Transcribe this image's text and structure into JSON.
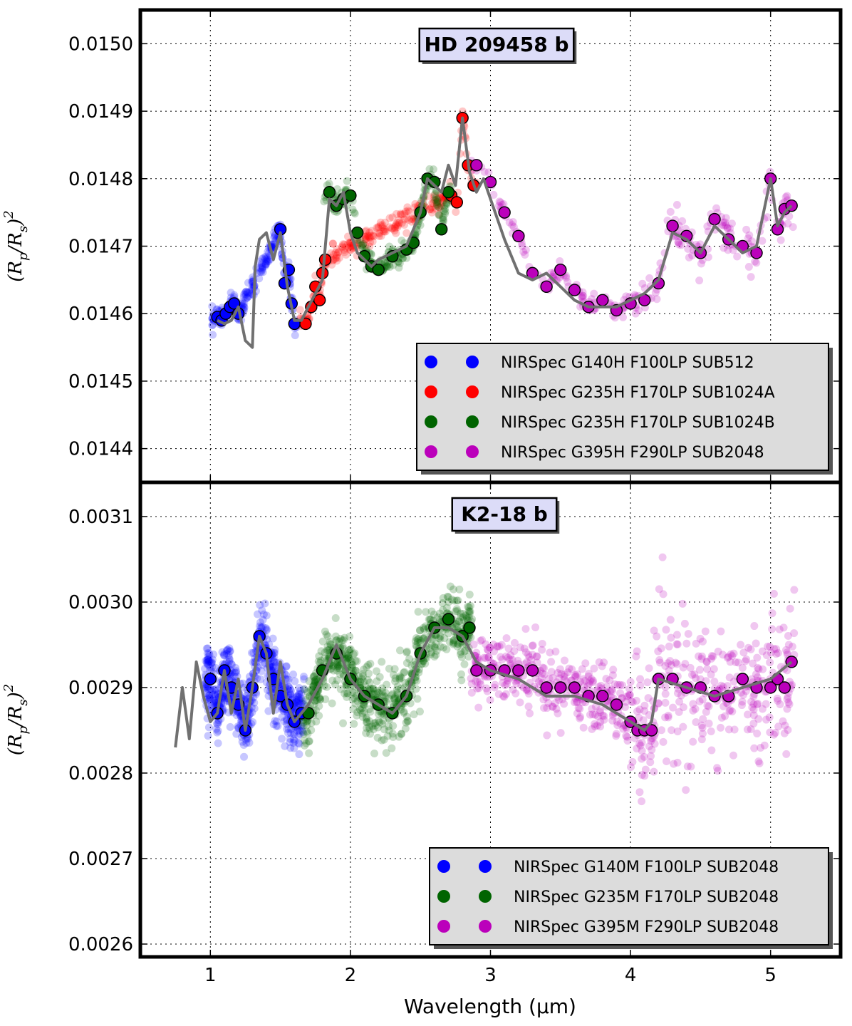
{
  "chart_data": [
    {
      "type": "scatter",
      "title": "HD 209458 b",
      "ylabel": "(R_p/R_s)^2",
      "xlabel": "",
      "xlim": [
        0.5,
        5.5
      ],
      "ylim": [
        0.01435,
        0.01505
      ],
      "yticks": [
        "0.0144",
        "0.0145",
        "0.0146",
        "0.0147",
        "0.0148",
        "0.0149",
        "0.0150"
      ],
      "yticks_values": [
        0.0144,
        0.0145,
        0.0146,
        0.0147,
        0.0148,
        0.0149,
        0.015
      ],
      "grid": true,
      "legend_position": "lower-right",
      "series": [
        {
          "name": "NIRSpec G140H F100LP SUB512",
          "color": "#0000ff",
          "x": [
            1.05,
            1.08,
            1.11,
            1.14,
            1.17,
            1.2,
            1.5,
            1.53,
            1.56,
            1.58,
            1.6
          ],
          "y": [
            0.014595,
            0.01459,
            0.0146,
            0.01461,
            0.014615,
            0.0146,
            0.014725,
            0.014645,
            0.014665,
            0.014615,
            0.014585
          ]
        },
        {
          "name": "NIRSpec G235H F170LP SUB1024A",
          "color": "#ff0000",
          "x": [
            1.68,
            1.72,
            1.75,
            1.78,
            1.8,
            1.82,
            2.72,
            2.76,
            2.8,
            2.84,
            2.88
          ],
          "y": [
            0.014585,
            0.01461,
            0.01464,
            0.01462,
            0.01466,
            0.01468,
            0.014775,
            0.014765,
            0.01489,
            0.01482,
            0.01479
          ]
        },
        {
          "name": "NIRSpec G235H F170LP SUB1024B",
          "color": "#006400",
          "x": [
            1.85,
            1.9,
            1.95,
            2.0,
            2.05,
            2.1,
            2.15,
            2.2,
            2.3,
            2.4,
            2.45,
            2.5,
            2.55,
            2.6,
            2.65,
            2.7
          ],
          "y": [
            0.01478,
            0.01476,
            0.01477,
            0.014775,
            0.01472,
            0.014685,
            0.01467,
            0.014665,
            0.014685,
            0.014695,
            0.014705,
            0.01475,
            0.0148,
            0.014795,
            0.014725,
            0.01478
          ]
        },
        {
          "name": "NIRSpec G395H F290LP SUB2048",
          "color": "#bb00bb",
          "x": [
            2.9,
            3.0,
            3.1,
            3.2,
            3.3,
            3.4,
            3.5,
            3.6,
            3.7,
            3.8,
            3.9,
            4.0,
            4.1,
            4.2,
            4.3,
            4.4,
            4.5,
            4.6,
            4.7,
            4.8,
            4.9,
            5.0,
            5.05,
            5.1,
            5.15
          ],
          "y": [
            0.01482,
            0.014795,
            0.01475,
            0.014715,
            0.01466,
            0.01464,
            0.014665,
            0.014635,
            0.01461,
            0.01462,
            0.014605,
            0.014615,
            0.01462,
            0.014645,
            0.01473,
            0.014715,
            0.01469,
            0.01474,
            0.01471,
            0.0147,
            0.01469,
            0.0148,
            0.014725,
            0.014755,
            0.01476
          ]
        }
      ],
      "model": {
        "color": "#707070",
        "x": [
          1.05,
          1.1,
          1.15,
          1.2,
          1.25,
          1.3,
          1.32,
          1.35,
          1.4,
          1.45,
          1.5,
          1.55,
          1.6,
          1.65,
          1.7,
          1.75,
          1.8,
          1.85,
          1.9,
          1.95,
          2.0,
          2.05,
          2.1,
          2.15,
          2.2,
          2.3,
          2.4,
          2.5,
          2.55,
          2.6,
          2.65,
          2.7,
          2.75,
          2.8,
          2.85,
          2.9,
          2.95,
          3.0,
          3.1,
          3.2,
          3.3,
          3.4,
          3.5,
          3.6,
          3.7,
          3.8,
          3.9,
          4.0,
          4.1,
          4.2,
          4.3,
          4.4,
          4.5,
          4.6,
          4.7,
          4.8,
          4.9,
          5.0,
          5.05,
          5.1,
          5.15
        ],
        "y": [
          0.01459,
          0.014585,
          0.01459,
          0.01461,
          0.01456,
          0.01455,
          0.01467,
          0.01471,
          0.01472,
          0.01468,
          0.01472,
          0.01464,
          0.01459,
          0.01459,
          0.01461,
          0.01463,
          0.01465,
          0.01477,
          0.01476,
          0.01478,
          0.01472,
          0.01469,
          0.01468,
          0.01467,
          0.01468,
          0.01469,
          0.0147,
          0.01475,
          0.0148,
          0.01479,
          0.01478,
          0.01482,
          0.01479,
          0.01489,
          0.01481,
          0.01478,
          0.0148,
          0.01477,
          0.01471,
          0.01466,
          0.01465,
          0.01466,
          0.01464,
          0.01462,
          0.01461,
          0.01461,
          0.01461,
          0.01462,
          0.01463,
          0.01465,
          0.01472,
          0.01471,
          0.01469,
          0.01473,
          0.01471,
          0.01469,
          0.0147,
          0.0148,
          0.01473,
          0.01475,
          0.01476
        ]
      }
    },
    {
      "type": "scatter",
      "title": "K2-18 b",
      "ylabel": "(R_p/R_s)^2",
      "xlabel": "Wavelength (μm)",
      "xlim": [
        0.5,
        5.5
      ],
      "ylim": [
        0.002585,
        0.00314
      ],
      "xticks": [
        "1",
        "2",
        "3",
        "4",
        "5"
      ],
      "xticks_values": [
        1,
        2,
        3,
        4,
        5
      ],
      "yticks": [
        "0.0026",
        "0.0027",
        "0.0028",
        "0.0029",
        "0.0030",
        "0.0031"
      ],
      "yticks_values": [
        0.0026,
        0.0027,
        0.0028,
        0.0029,
        0.003,
        0.0031
      ],
      "grid": true,
      "legend_position": "lower-right",
      "series": [
        {
          "name": "NIRSpec G140M F100LP SUB2048",
          "color": "#0000ff",
          "x": [
            1.0,
            1.05,
            1.1,
            1.15,
            1.2,
            1.25,
            1.3,
            1.35,
            1.4,
            1.45,
            1.5,
            1.55,
            1.6,
            1.65
          ],
          "y": [
            0.00291,
            0.00287,
            0.00292,
            0.0029,
            0.00288,
            0.00285,
            0.0029,
            0.00296,
            0.00294,
            0.00291,
            0.00289,
            0.00288,
            0.00286,
            0.00287
          ]
        },
        {
          "name": "NIRSpec G235M F170LP SUB2048",
          "color": "#006400",
          "x": [
            1.7,
            1.8,
            1.9,
            2.0,
            2.1,
            2.2,
            2.3,
            2.4,
            2.5,
            2.6,
            2.7,
            2.8,
            2.85
          ],
          "y": [
            0.00287,
            0.00292,
            0.00294,
            0.00291,
            0.00289,
            0.00288,
            0.00287,
            0.00289,
            0.00294,
            0.00297,
            0.00298,
            0.00296,
            0.00297
          ]
        },
        {
          "name": "NIRSpec G395M F290LP SUB2048",
          "color": "#bb00bb",
          "x": [
            2.9,
            3.0,
            3.1,
            3.2,
            3.3,
            3.4,
            3.5,
            3.6,
            3.7,
            3.8,
            3.9,
            4.0,
            4.05,
            4.1,
            4.15,
            4.2,
            4.3,
            4.4,
            4.5,
            4.6,
            4.7,
            4.8,
            4.9,
            5.0,
            5.05,
            5.1,
            5.15
          ],
          "y": [
            0.00292,
            0.00292,
            0.00292,
            0.00292,
            0.00292,
            0.0029,
            0.0029,
            0.0029,
            0.00289,
            0.00289,
            0.00288,
            0.00286,
            0.00285,
            0.00285,
            0.00285,
            0.00291,
            0.00291,
            0.0029,
            0.0029,
            0.00289,
            0.00289,
            0.00291,
            0.0029,
            0.0029,
            0.00291,
            0.0029,
            0.00293
          ]
        }
      ],
      "model": {
        "color": "#707070",
        "x": [
          0.75,
          0.8,
          0.85,
          0.9,
          0.95,
          1.0,
          1.05,
          1.1,
          1.15,
          1.2,
          1.25,
          1.3,
          1.35,
          1.4,
          1.45,
          1.5,
          1.55,
          1.6,
          1.65,
          1.7,
          1.8,
          1.9,
          2.0,
          2.1,
          2.2,
          2.3,
          2.4,
          2.5,
          2.6,
          2.7,
          2.8,
          2.9,
          3.0,
          3.2,
          3.4,
          3.6,
          3.8,
          4.0,
          4.1,
          4.15,
          4.2,
          4.4,
          4.6,
          4.8,
          5.0,
          5.15
        ],
        "y": [
          0.00283,
          0.0029,
          0.00284,
          0.00293,
          0.00289,
          0.00286,
          0.00287,
          0.00292,
          0.00287,
          0.00291,
          0.00285,
          0.0029,
          0.00296,
          0.00294,
          0.00287,
          0.00293,
          0.00288,
          0.00286,
          0.00287,
          0.00288,
          0.00291,
          0.00295,
          0.00291,
          0.00289,
          0.00288,
          0.00287,
          0.00289,
          0.00294,
          0.00297,
          0.00297,
          0.00296,
          0.00293,
          0.00292,
          0.00291,
          0.00289,
          0.00289,
          0.00288,
          0.00286,
          0.00285,
          0.00286,
          0.00291,
          0.0029,
          0.00289,
          0.0029,
          0.00291,
          0.00293
        ]
      }
    }
  ]
}
